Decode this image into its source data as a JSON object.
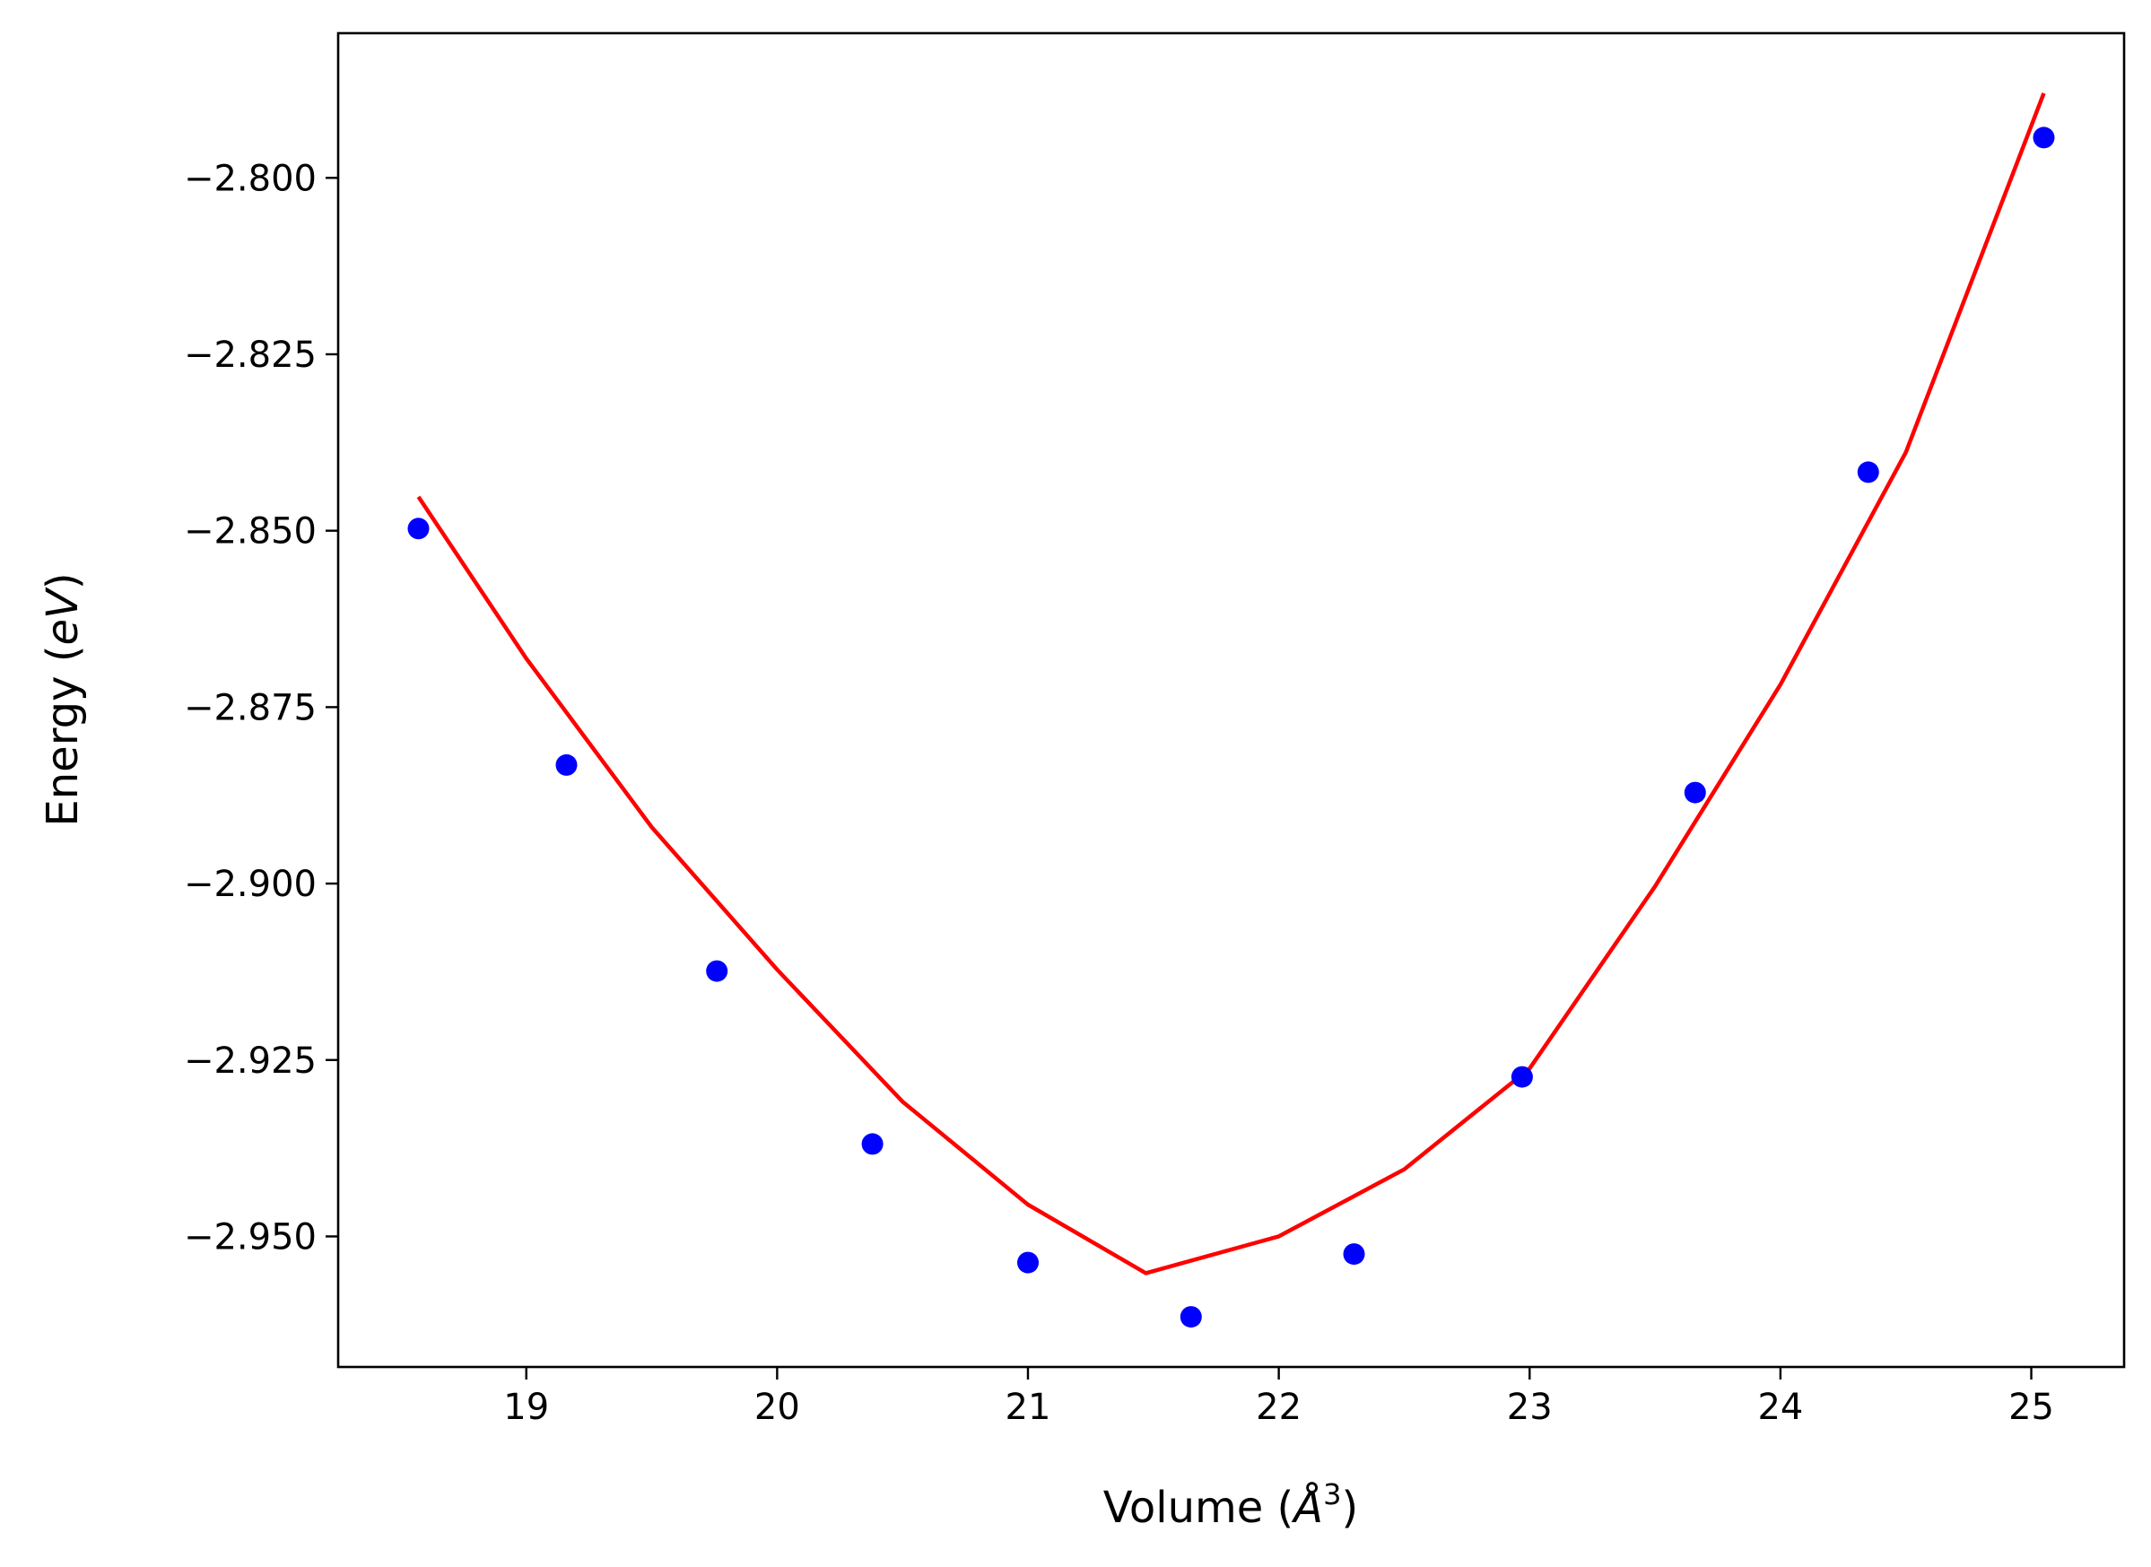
{
  "chart_data": {
    "type": "scatter",
    "xlabel": "Volume",
    "xlabel_unit_symbol": "Å",
    "xlabel_unit_exponent": "3",
    "ylabel": "Energy",
    "ylabel_unit": "eV",
    "xlim": [
      18.25,
      25.37
    ],
    "ylim": [
      -2.9685,
      -2.7795
    ],
    "x_ticks": [
      19,
      20,
      21,
      22,
      23,
      24,
      25
    ],
    "y_ticks": [
      -2.8,
      -2.825,
      -2.85,
      -2.875,
      -2.9,
      -2.925,
      -2.95
    ],
    "x_tick_labels": [
      "19",
      "20",
      "21",
      "22",
      "23",
      "24",
      "25"
    ],
    "y_tick_labels": [
      "−2.800",
      "−2.825",
      "−2.850",
      "−2.875",
      "−2.900",
      "−2.925",
      "−2.950"
    ],
    "grid": false,
    "series": [
      {
        "kind": "points",
        "color": "#0000ff",
        "x": [
          18.57,
          19.16,
          19.76,
          20.38,
          21.0,
          21.65,
          22.3,
          22.97,
          23.66,
          24.35,
          25.05
        ],
        "y": [
          -2.8497,
          -2.8832,
          -2.9124,
          -2.9369,
          -2.9537,
          -2.9614,
          -2.9525,
          -2.9274,
          -2.8871,
          -2.8417,
          -2.7943
        ]
      },
      {
        "kind": "fit-line",
        "color": "#ff0000",
        "x": [
          18.57,
          19.0,
          19.5,
          20.0,
          20.5,
          21.0,
          21.47,
          22.0,
          22.5,
          23.0,
          23.5,
          24.0,
          24.5,
          25.05
        ],
        "y": [
          -2.8452,
          -2.8681,
          -2.892,
          -2.9122,
          -2.9309,
          -2.9455,
          -2.9552,
          -2.95,
          -2.9405,
          -2.9262,
          -2.9004,
          -2.8718,
          -2.8389,
          -2.788
        ]
      }
    ]
  }
}
